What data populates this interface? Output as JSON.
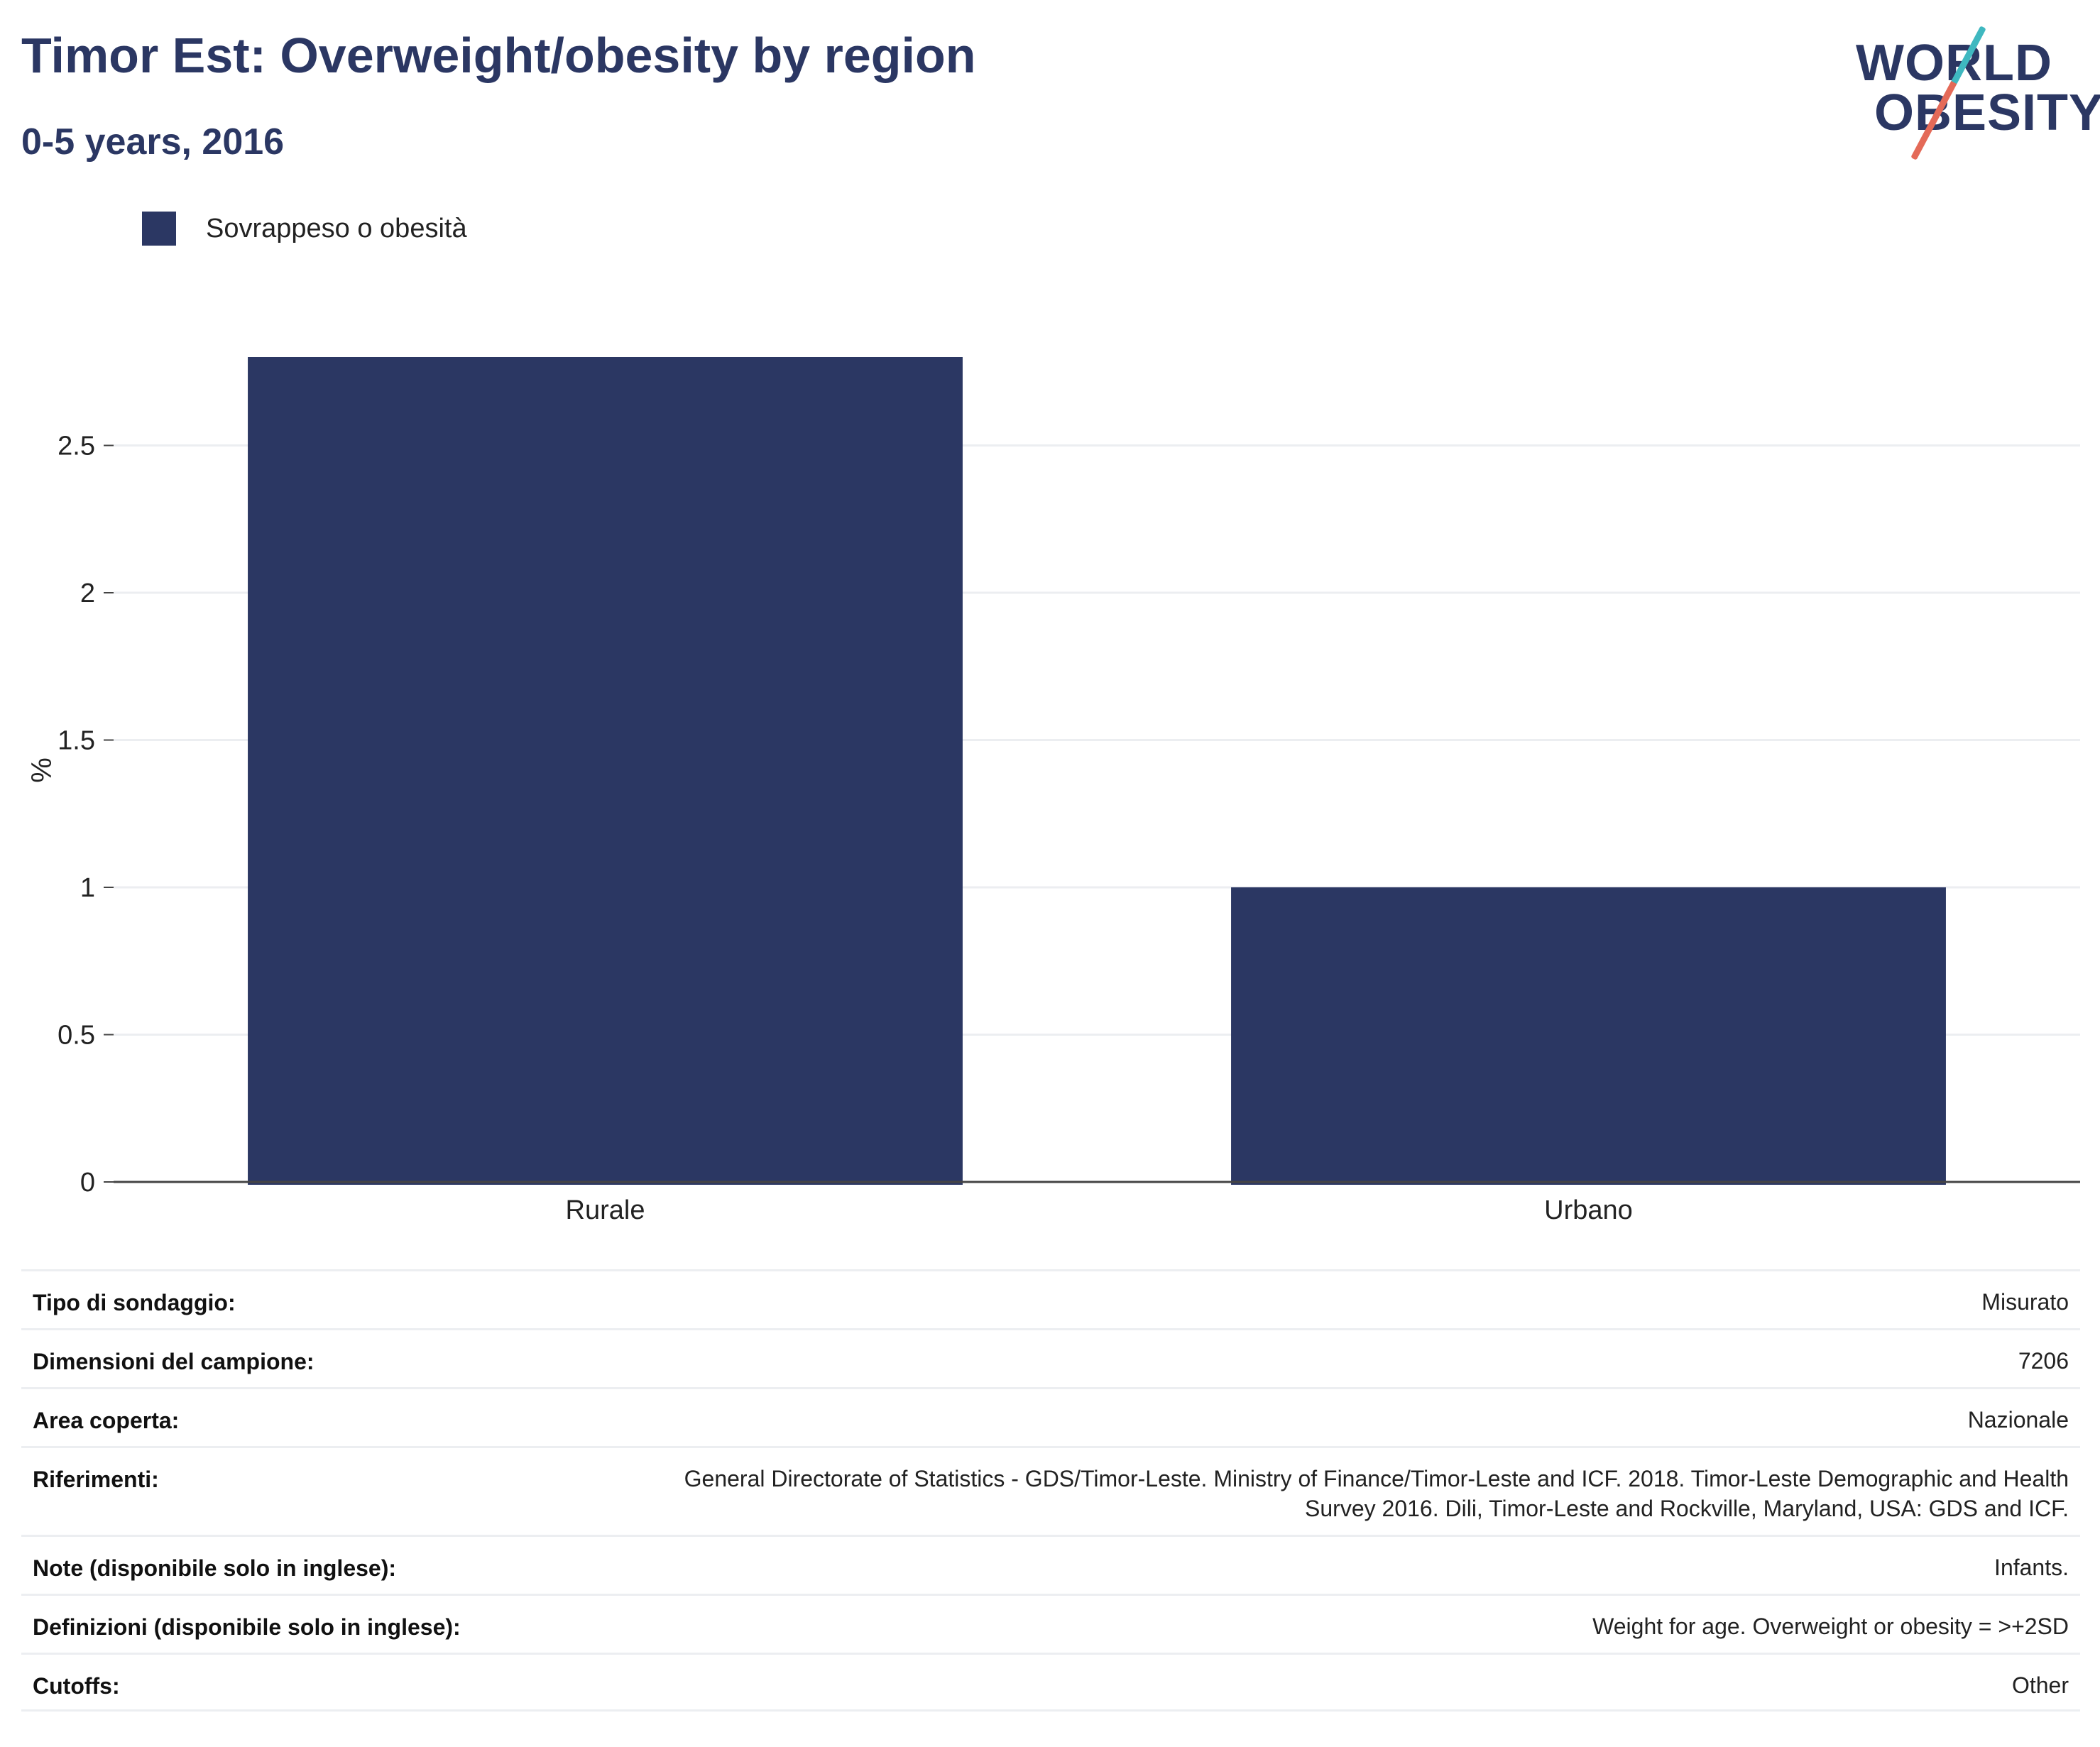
{
  "header": {
    "title": "Timor Est: Overweight/obesity by region",
    "subtitle": "0-5 years, 2016"
  },
  "logo": {
    "line1": "WORLD",
    "line2": "OBESITY",
    "colors": {
      "text": "#2b3763",
      "slash_top": "#3fb8c0",
      "slash_bottom": "#e46a58"
    }
  },
  "legend": {
    "entries": [
      {
        "label": "Sovrappeso o obesità",
        "color": "#2b3763"
      }
    ]
  },
  "chart_data": {
    "type": "bar",
    "categories": [
      "Rurale",
      "Urbano"
    ],
    "series": [
      {
        "name": "Sovrappeso o obesità",
        "values": [
          2.8,
          1.0
        ],
        "color": "#2b3763"
      }
    ],
    "xlabel": "",
    "ylabel": "%",
    "ylim": [
      0,
      3.0
    ],
    "yticks": [
      0,
      0.5,
      1,
      1.5,
      2,
      2.5
    ],
    "ytick_labels": [
      "0",
      "0.5",
      "1",
      "1.5",
      "2",
      "2.5"
    ],
    "grid": true,
    "legend_position": "top-left"
  },
  "info": {
    "rows": [
      {
        "label": "Tipo di sondaggio:",
        "value": "Misurato"
      },
      {
        "label": "Dimensioni del campione:",
        "value": "7206"
      },
      {
        "label": "Area coperta:",
        "value": "Nazionale"
      },
      {
        "label": "Riferimenti:",
        "value": "General Directorate of Statistics - GDS/Timor-Leste. Ministry of Finance/Timor-Leste and ICF. 2018. Timor-Leste Demographic and Health Survey 2016. Dili, Timor-Leste and Rockville, Maryland, USA: GDS and ICF."
      },
      {
        "label": "Note (disponibile solo in inglese):",
        "value": "Infants."
      },
      {
        "label": "Definizioni (disponibile solo in inglese):",
        "value": "Weight for age. Overweight or obesity = >+2SD"
      },
      {
        "label": "Cutoffs:",
        "value": "Other"
      }
    ]
  }
}
